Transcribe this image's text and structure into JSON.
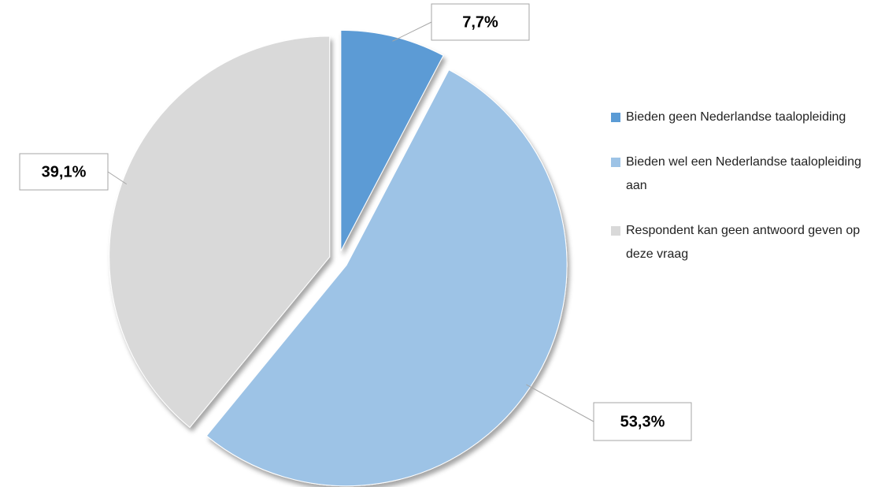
{
  "chart_data": {
    "type": "pie",
    "categories": [
      "Bieden geen Nederlandse taalopleiding",
      "Bieden wel een Nederlandse taalopleiding aan",
      "Respondent kan geen antwoord geven op deze vraag"
    ],
    "values": [
      7.7,
      53.3,
      39.1
    ],
    "value_labels": [
      "7,7%",
      "53,3%",
      "39,1%"
    ],
    "colors": [
      "#5b9bd5",
      "#9dc3e6",
      "#d9d9d9"
    ],
    "legend": "right"
  }
}
